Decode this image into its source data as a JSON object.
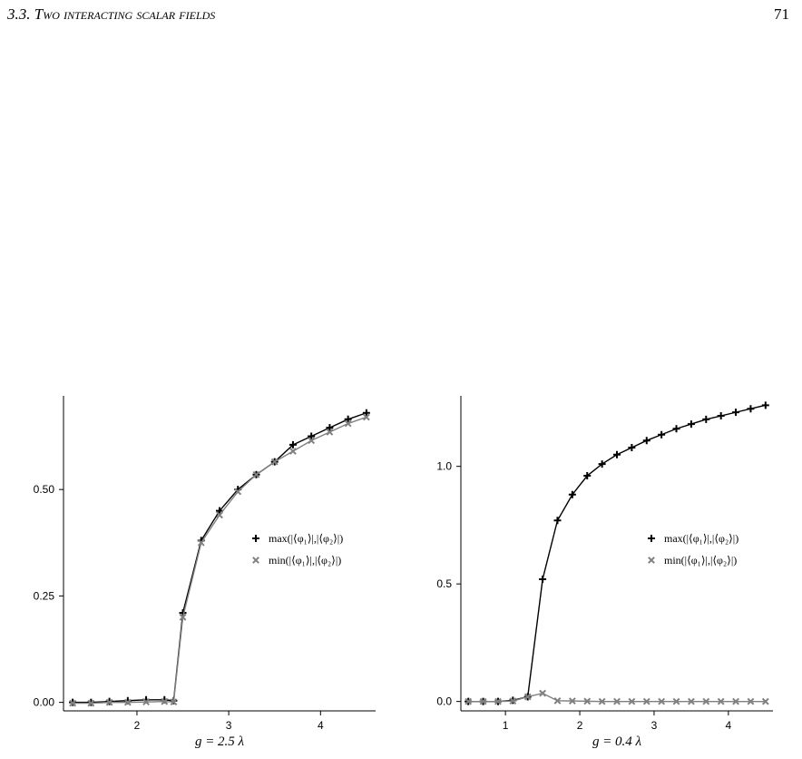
{
  "header": {
    "section_number": "3.3.",
    "section_title": "Two interacting scalar fields",
    "page_number": "71"
  },
  "chart_data": [
    {
      "type": "line",
      "xlabel": "g = 2.5 λ",
      "ylabel": "",
      "xlim": [
        1.2,
        4.6
      ],
      "ylim": [
        -0.02,
        0.72
      ],
      "xticks": [
        2,
        3,
        4
      ],
      "yticks": [
        0.0,
        0.25,
        0.5
      ],
      "ytick_labels": [
        "0.00",
        "0.25",
        "0.50"
      ],
      "legend_position": "right",
      "series": [
        {
          "name": "max(|⟨φ₁⟩|,|⟨φ₂⟩|)",
          "marker": "plus",
          "color": "#000000",
          "x": [
            1.3,
            1.5,
            1.7,
            1.9,
            2.1,
            2.3,
            2.4,
            2.5,
            2.7,
            2.9,
            3.1,
            3.3,
            3.5,
            3.7,
            3.9,
            4.1,
            4.3,
            4.5
          ],
          "y": [
            0.0,
            0.0,
            0.002,
            0.004,
            0.006,
            0.006,
            0.004,
            0.21,
            0.38,
            0.45,
            0.5,
            0.535,
            0.565,
            0.605,
            0.625,
            0.645,
            0.665,
            0.68
          ]
        },
        {
          "name": "min(|⟨φ₁⟩|,|⟨φ₂⟩|)",
          "marker": "x",
          "color": "#808080",
          "x": [
            1.3,
            1.5,
            1.7,
            1.9,
            2.1,
            2.3,
            2.4,
            2.5,
            2.7,
            2.9,
            3.1,
            3.3,
            3.5,
            3.7,
            3.9,
            4.1,
            4.3,
            4.5
          ],
          "y": [
            -0.002,
            -0.002,
            0.0,
            0.0,
            0.001,
            0.002,
            0.001,
            0.2,
            0.375,
            0.44,
            0.495,
            0.535,
            0.565,
            0.59,
            0.615,
            0.635,
            0.655,
            0.67
          ]
        }
      ]
    },
    {
      "type": "line",
      "xlabel": "g = 0.4 λ",
      "ylabel": "",
      "xlim": [
        0.4,
        4.6
      ],
      "ylim": [
        -0.04,
        1.3
      ],
      "xticks": [
        1,
        2,
        3,
        4
      ],
      "yticks": [
        0.0,
        0.5,
        1.0
      ],
      "ytick_labels": [
        "0.0",
        "0.5",
        "1.0"
      ],
      "legend_position": "right",
      "series": [
        {
          "name": "max(|⟨φ₁⟩|,|⟨φ₂⟩|)",
          "marker": "plus",
          "color": "#000000",
          "x": [
            0.5,
            0.7,
            0.9,
            1.1,
            1.3,
            1.5,
            1.7,
            1.9,
            2.1,
            2.3,
            2.5,
            2.7,
            2.9,
            3.1,
            3.3,
            3.5,
            3.7,
            3.9,
            4.1,
            4.3,
            4.5
          ],
          "y": [
            0.0,
            0.0,
            0.0,
            0.005,
            0.02,
            0.52,
            0.77,
            0.88,
            0.96,
            1.01,
            1.05,
            1.08,
            1.11,
            1.135,
            1.16,
            1.18,
            1.2,
            1.215,
            1.23,
            1.245,
            1.26
          ]
        },
        {
          "name": "min(|⟨φ₁⟩|,|⟨φ₂⟩|)",
          "marker": "x",
          "color": "#808080",
          "x": [
            0.5,
            0.7,
            0.9,
            1.1,
            1.3,
            1.5,
            1.7,
            1.9,
            2.1,
            2.3,
            2.5,
            2.7,
            2.9,
            3.1,
            3.3,
            3.5,
            3.7,
            3.9,
            4.1,
            4.3,
            4.5
          ],
          "y": [
            0.0,
            0.0,
            0.0,
            0.002,
            0.02,
            0.035,
            0.003,
            0.002,
            0.001,
            0.0,
            0.0,
            0.0,
            0.0,
            0.0,
            0.0,
            0.0,
            0.0,
            0.0,
            0.0,
            0.0,
            0.0
          ]
        }
      ]
    }
  ]
}
